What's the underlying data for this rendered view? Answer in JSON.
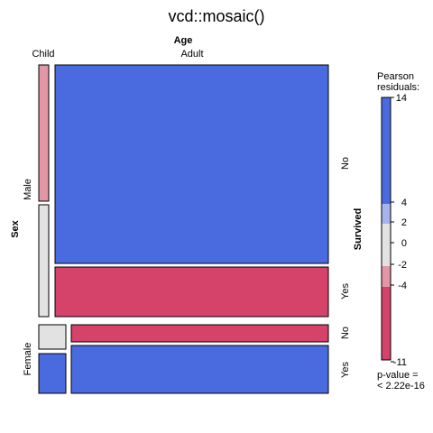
{
  "chart_data": {
    "type": "mosaic",
    "title": "vcd::mosaic()",
    "variables": {
      "column": "Age",
      "row_outer": "Sex",
      "row_inner": "Survived"
    },
    "age_levels": [
      "Child",
      "Adult"
    ],
    "sex_levels": [
      "Male",
      "Female"
    ],
    "survived_levels": [
      "No",
      "Yes"
    ],
    "cells": [
      {
        "sex": "Male",
        "age": "Child",
        "survived": "No",
        "shade": "ltpink"
      },
      {
        "sex": "Male",
        "age": "Child",
        "survived": "Yes",
        "shade": "grey"
      },
      {
        "sex": "Male",
        "age": "Adult",
        "survived": "No",
        "shade": "blue"
      },
      {
        "sex": "Male",
        "age": "Adult",
        "survived": "Yes",
        "shade": "red"
      },
      {
        "sex": "Female",
        "age": "Child",
        "survived": "No",
        "shade": "grey"
      },
      {
        "sex": "Female",
        "age": "Child",
        "survived": "Yes",
        "shade": "blue"
      },
      {
        "sex": "Female",
        "age": "Adult",
        "survived": "No",
        "shade": "red"
      },
      {
        "sex": "Female",
        "age": "Adult",
        "survived": "Yes",
        "shade": "blue"
      }
    ],
    "legend": {
      "title_line1": "Pearson",
      "title_line2": "residuals:",
      "max_label": "14",
      "min_label": "-11",
      "breaks": [
        "4",
        "2",
        "0",
        "-2",
        "-4"
      ],
      "pvalue_line1": "p-value =",
      "pvalue_line2": "< 2.22e-16"
    },
    "colors": {
      "blue": "#4a6be0",
      "ltblue": "#a6b4ee",
      "grey": "#e2e2e2",
      "ltpink": "#e396a5",
      "red": "#d5426a",
      "border": "#000000"
    }
  }
}
